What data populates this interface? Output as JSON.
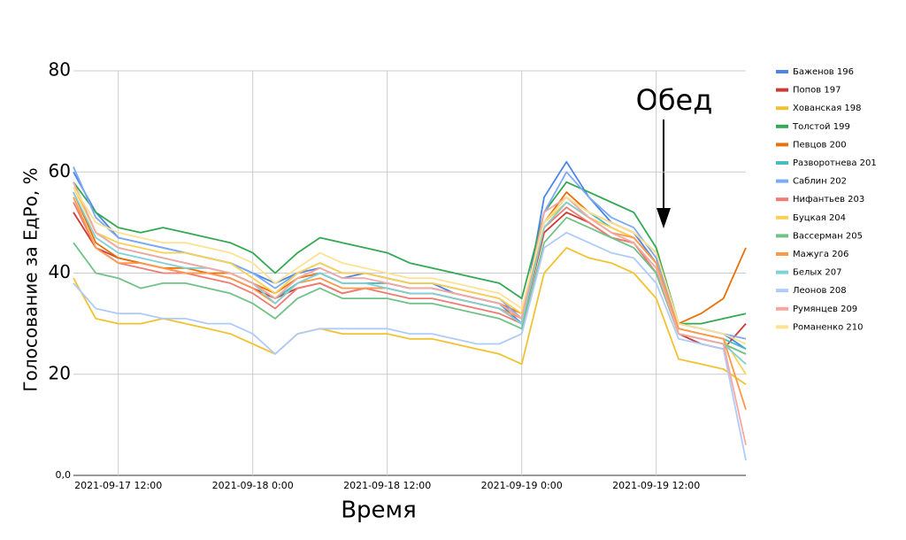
{
  "chart_data": {
    "type": "line",
    "xlabel": "Время",
    "ylabel": "Голосование за ЕдРо, %",
    "annotation": "Обед",
    "x": [
      "2021-09-17 08:00",
      "2021-09-17 10:00",
      "2021-09-17 12:00",
      "2021-09-17 14:00",
      "2021-09-17 16:00",
      "2021-09-17 18:00",
      "2021-09-17 20:00",
      "2021-09-17 22:00",
      "2021-09-18 00:00",
      "2021-09-18 02:00",
      "2021-09-18 04:00",
      "2021-09-18 06:00",
      "2021-09-18 08:00",
      "2021-09-18 10:00",
      "2021-09-18 12:00",
      "2021-09-18 14:00",
      "2021-09-18 16:00",
      "2021-09-18 18:00",
      "2021-09-18 20:00",
      "2021-09-18 22:00",
      "2021-09-19 00:00",
      "2021-09-19 02:00",
      "2021-09-19 04:00",
      "2021-09-19 06:00",
      "2021-09-19 08:00",
      "2021-09-19 10:00",
      "2021-09-19 12:00",
      "2021-09-19 14:00",
      "2021-09-19 16:00",
      "2021-09-19 18:00",
      "2021-09-19 20:00"
    ],
    "xlim": [
      "2021-09-17 08:00",
      "2021-09-19 20:00"
    ],
    "xticks": [
      "2021-09-17 12:00",
      {
        "value": "2021-09-18 00:00",
        "label": "2021-09-18 0:00"
      },
      "2021-09-18 12:00",
      {
        "value": "2021-09-19 00:00",
        "label": "2021-09-19 0:00"
      },
      "2021-09-19 12:00"
    ],
    "ylim": [
      0,
      80
    ],
    "yticks": [
      {
        "value": 0,
        "label": "0,0"
      },
      20,
      40,
      60,
      80
    ],
    "grid": true,
    "legend": "right",
    "series": [
      {
        "name": "Баженов 196",
        "color": "#4a86e8",
        "values": [
          60,
          52,
          47,
          46,
          45,
          44,
          43,
          42,
          40,
          38,
          40,
          41,
          39,
          40,
          39,
          38,
          38,
          36,
          35,
          34,
          30,
          55,
          62,
          55,
          50,
          48,
          42,
          30,
          29,
          28,
          25
        ]
      },
      {
        "name": "Попов 197",
        "color": "#cc3b33",
        "values": [
          52,
          45,
          43,
          42,
          41,
          40,
          40,
          39,
          37,
          35,
          37,
          38,
          36,
          37,
          37,
          36,
          36,
          35,
          34,
          33,
          30,
          48,
          52,
          50,
          47,
          46,
          40,
          28,
          26,
          25,
          30
        ]
      },
      {
        "name": "Хованская 198",
        "color": "#f1c232",
        "values": [
          39,
          31,
          30,
          30,
          31,
          30,
          29,
          28,
          26,
          24,
          28,
          29,
          28,
          28,
          28,
          27,
          27,
          26,
          25,
          24,
          22,
          40,
          45,
          43,
          42,
          40,
          35,
          23,
          22,
          21,
          18
        ]
      },
      {
        "name": "Толстой 199",
        "color": "#34a853",
        "values": [
          58,
          52,
          49,
          48,
          49,
          48,
          47,
          46,
          44,
          40,
          44,
          47,
          46,
          45,
          44,
          42,
          41,
          40,
          39,
          38,
          35,
          52,
          58,
          56,
          54,
          52,
          45,
          30,
          30,
          31,
          32
        ]
      },
      {
        "name": "Певцов 200",
        "color": "#e8710a",
        "values": [
          56,
          46,
          43,
          42,
          41,
          41,
          40,
          40,
          38,
          36,
          39,
          40,
          38,
          38,
          38,
          37,
          37,
          36,
          35,
          34,
          32,
          50,
          56,
          52,
          50,
          48,
          44,
          30,
          32,
          35,
          45
        ]
      },
      {
        "name": "Разворотнева 201",
        "color": "#46bdc6",
        "values": [
          58,
          48,
          45,
          44,
          43,
          42,
          41,
          40,
          38,
          35,
          38,
          40,
          38,
          38,
          38,
          37,
          37,
          36,
          35,
          34,
          31,
          50,
          55,
          52,
          49,
          47,
          42,
          29,
          28,
          27,
          25
        ]
      },
      {
        "name": "Саблин 202",
        "color": "#7baaf7",
        "values": [
          61,
          51,
          47,
          46,
          45,
          44,
          43,
          42,
          40,
          37,
          40,
          42,
          40,
          40,
          39,
          38,
          38,
          37,
          36,
          35,
          31,
          52,
          60,
          55,
          51,
          49,
          43,
          30,
          29,
          28,
          27
        ]
      },
      {
        "name": "Нифантьев 203",
        "color": "#f07b72",
        "values": [
          54,
          45,
          42,
          41,
          40,
          40,
          39,
          38,
          36,
          33,
          37,
          38,
          36,
          37,
          36,
          35,
          35,
          34,
          33,
          32,
          30,
          49,
          53,
          50,
          47,
          46,
          40,
          28,
          27,
          26,
          24
        ]
      },
      {
        "name": "Буцкая 204",
        "color": "#fcd04f",
        "values": [
          57,
          48,
          46,
          45,
          44,
          44,
          43,
          42,
          39,
          36,
          40,
          42,
          40,
          40,
          39,
          38,
          38,
          37,
          36,
          35,
          32,
          50,
          54,
          51,
          49,
          47,
          42,
          29,
          28,
          27,
          20
        ]
      },
      {
        "name": "Вассерман 205",
        "color": "#71c287",
        "values": [
          46,
          40,
          39,
          37,
          38,
          38,
          37,
          36,
          34,
          31,
          35,
          37,
          35,
          35,
          35,
          34,
          34,
          33,
          32,
          31,
          29,
          46,
          51,
          49,
          47,
          45,
          40,
          28,
          27,
          26,
          24
        ]
      },
      {
        "name": "Мажуга 206",
        "color": "#ff994d",
        "values": [
          55,
          45,
          42,
          42,
          41,
          40,
          40,
          39,
          37,
          34,
          38,
          39,
          37,
          37,
          37,
          36,
          36,
          35,
          34,
          33,
          31,
          49,
          54,
          51,
          48,
          47,
          42,
          29,
          28,
          27,
          13
        ]
      },
      {
        "name": "Белых 207",
        "color": "#7ed1d7",
        "values": [
          56,
          47,
          44,
          43,
          42,
          41,
          41,
          40,
          38,
          34,
          38,
          40,
          38,
          38,
          37,
          36,
          36,
          35,
          34,
          33,
          30,
          49,
          54,
          51,
          48,
          46,
          41,
          28,
          27,
          26,
          22
        ]
      },
      {
        "name": "Леонов 208",
        "color": "#aecbfa",
        "values": [
          38,
          33,
          32,
          32,
          31,
          31,
          30,
          30,
          28,
          24,
          28,
          29,
          29,
          29,
          29,
          28,
          28,
          27,
          26,
          26,
          28,
          45,
          48,
          46,
          44,
          43,
          38,
          27,
          26,
          25,
          3
        ]
      },
      {
        "name": "Румянцев 209",
        "color": "#f7a7a2",
        "values": [
          58,
          48,
          45,
          44,
          43,
          42,
          41,
          40,
          38,
          35,
          39,
          41,
          39,
          39,
          38,
          37,
          37,
          36,
          35,
          34,
          31,
          52,
          55,
          51,
          48,
          46,
          41,
          28,
          27,
          26,
          6
        ]
      },
      {
        "name": "Романенко 210",
        "color": "#fde293",
        "values": [
          57,
          50,
          48,
          47,
          46,
          46,
          45,
          44,
          42,
          38,
          41,
          44,
          42,
          41,
          40,
          39,
          39,
          38,
          37,
          36,
          33,
          50,
          55,
          52,
          50,
          48,
          44,
          30,
          29,
          28,
          26
        ]
      }
    ]
  }
}
